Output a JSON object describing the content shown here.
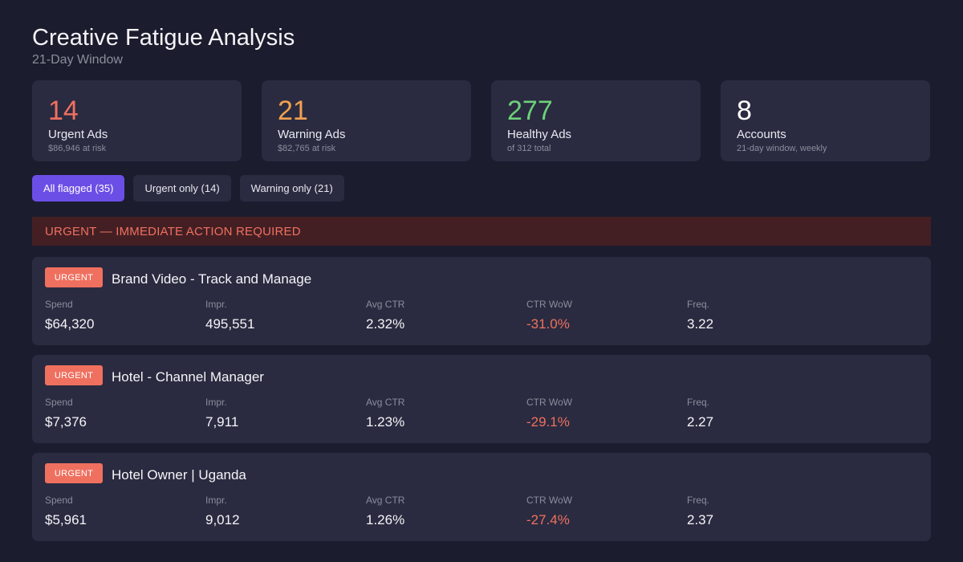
{
  "header": {
    "title": "Creative Fatigue Analysis",
    "subtitle": "21-Day Window"
  },
  "stats": [
    {
      "value": "14",
      "label": "Urgent Ads",
      "sub": "$86,946 at risk",
      "color": "#f0705f"
    },
    {
      "value": "21",
      "label": "Warning Ads",
      "sub": "$82,765 at risk",
      "color": "#f2a14f"
    },
    {
      "value": "277",
      "label": "Healthy Ads",
      "sub": "of 312 total",
      "color": "#6dd07a"
    },
    {
      "value": "8",
      "label": "Accounts",
      "sub": "21-day window, weekly",
      "color": "#ffffff"
    }
  ],
  "filters": [
    {
      "label": "All flagged (35)",
      "active": true
    },
    {
      "label": "Urgent only (14)",
      "active": false
    },
    {
      "label": "Warning only (21)",
      "active": false
    }
  ],
  "section": {
    "title": "URGENT  —  IMMEDIATE ACTION REQUIRED"
  },
  "metric_labels": {
    "spend": "Spend",
    "impr": "Impr.",
    "ctr": "Avg CTR",
    "wow": "CTR WoW",
    "freq": "Freq."
  },
  "ads": [
    {
      "badge": "URGENT",
      "name": "Brand Video - Track and Manage",
      "spend": "$64,320",
      "impr": "495,551",
      "ctr": "2.32%",
      "wow": "-31.0%",
      "freq": "3.22"
    },
    {
      "badge": "URGENT",
      "name": "Hotel - Channel Manager",
      "spend": "$7,376",
      "impr": "7,911",
      "ctr": "1.23%",
      "wow": "-29.1%",
      "freq": "2.27"
    },
    {
      "badge": "URGENT",
      "name": "Hotel Owner | Uganda",
      "spend": "$5,961",
      "impr": "9,012",
      "ctr": "1.26%",
      "wow": "-27.4%",
      "freq": "2.37"
    }
  ],
  "colors": {
    "accent": "#6b4ee6",
    "urgent": "#f0705f",
    "warning": "#f2a14f",
    "healthy": "#6dd07a"
  }
}
